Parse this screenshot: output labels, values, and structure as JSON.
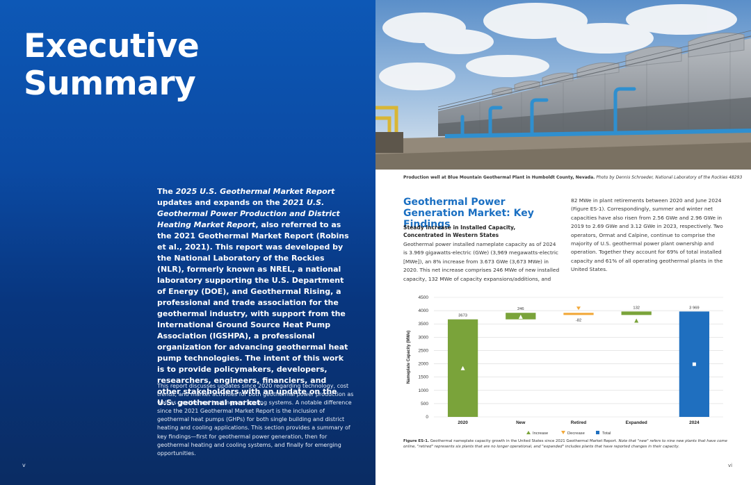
{
  "left": {
    "title_line1": "Executive",
    "title_line2": "Summary",
    "intro": {
      "p1": "The ",
      "p2": "2025 U.S. Geothermal Market Report",
      "p3": " updates and expands on the ",
      "p4": "2021 U.S. Geothermal Power Production and District Heating Market Report",
      "p5": ", also referred to as the 2021 Geothermal Market Report (Robins et al., 2021). This report was developed by the National Laboratory of the Rockies (NLR), formerly known as NREL, a national laboratory supporting the U.S. Department of Energy (DOE), and Geothermal Rising, a professional and trade association for the geothermal industry, with support from the International Ground Source Heat Pump Association (IGSHPA), a professional organization for advancing geothermal heat pump technologies. The intent of this work is to provide policymakers, developers, researchers, engineers, financiers, and other stakeholders with an update on the U.S. geothermal market."
    },
    "body": "This report discusses updates since 2020 regarding technology, cost trends, and market activities for both geothermal power production as well as geothermal heating and cooling systems. A notable difference since the 2021 Geothermal Market Report is the inclusion of geothermal heat pumps (GHPs) for both single building and district heating and cooling applications. This section provides a summary of key findings—first for geothermal power generation, then for geothermal heating and cooling systems, and finally for emerging opportunities.",
    "page_number": "v"
  },
  "right": {
    "photo_caption_bold": "Production well at Blue Mountain Geothermal Plant in Humboldt County, Nevada.",
    "photo_caption_italic": " Photo by Dennis Schroeder, National Laboratory of the Rockies 48293",
    "section_title": "Geothermal Power Generation Market: Key Findings",
    "subhead": "Steady Increase in Installed Capacity, Concentrated in Western States",
    "col1": "Geothermal power installed nameplate capacity as of 2024 is 3.969 gigawatts-electric (GWe) (3,969 megawatts-electric [MWe]), an 8% increase from 3.673 GWe (3,673 MWe) in 2020. This net increase comprises 246 MWe of new installed capacity, 132 MWe of capacity expansions/additions, and",
    "col2": "82 MWe in plant retirements between 2020 and June 2024 (Figure ES-1). Correspondingly, summer and winter net capacities have also risen from 2.56 GWe and 2.96 GWe in 2019 to 2.69 GWe and 3.12 GWe in 2023, respectively. Two operators, Ormat and Calpine, continue to comprise the majority of U.S. geothermal power plant ownership and operation. Together they account for 69% of total installed capacity and 61% of all operating geothermal plants in the United States.",
    "fig_caption_bold": "Figure ES-1.",
    "fig_caption_text": " Geothermal nameplate capacity growth in the United States since 2021 Geothermal Market Report.",
    "fig_caption_italic": " Note that \"new\" refers to nine new plants that have come online, \"retired\" represents six plants that are no longer operational, and \"expanded\" includes plants that have reported changes in their capacity.",
    "page_number": "vi"
  },
  "colors": {
    "blue_page": "#0b4aa3",
    "title_blue": "#1a6fc2",
    "increase": "#7aa33a",
    "decrease": "#f2a93b",
    "total": "#1f6fbf"
  },
  "chart_data": {
    "type": "bar",
    "subtype": "waterfall",
    "categories": [
      "2020",
      "New",
      "Retired",
      "Expanded",
      "2024"
    ],
    "ylabel": "Nameplate Capacity (MWe)",
    "ylim": [
      0,
      4500
    ],
    "yticks": [
      0,
      500,
      1000,
      1500,
      2000,
      2500,
      3000,
      3500,
      4000,
      4500
    ],
    "bars": [
      {
        "category": "2020",
        "kind": "increase",
        "start": 0,
        "end": 3673,
        "label": "3673"
      },
      {
        "category": "New",
        "kind": "increase",
        "start": 3673,
        "end": 3919,
        "label": "246"
      },
      {
        "category": "Retired",
        "kind": "decrease",
        "start": 3919,
        "end": 3837,
        "label": "-82"
      },
      {
        "category": "Expanded",
        "kind": "increase",
        "start": 3837,
        "end": 3969,
        "label": "132"
      },
      {
        "category": "2024",
        "kind": "total",
        "start": 0,
        "end": 3969,
        "label": "3 969"
      }
    ],
    "legend": [
      "Increase",
      "Decrease",
      "Total"
    ],
    "legend_position": "bottom",
    "grid": true
  }
}
